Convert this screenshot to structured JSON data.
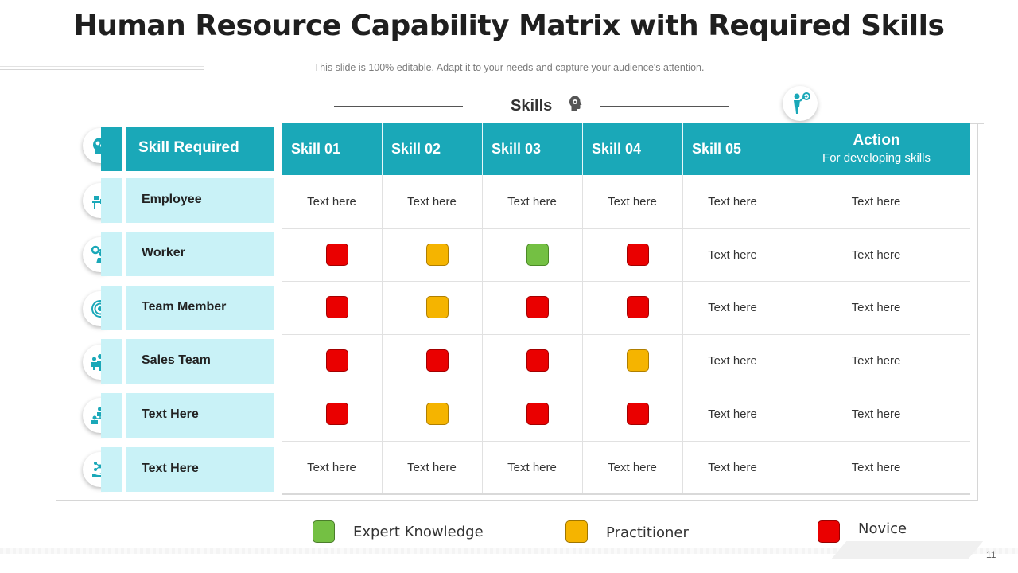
{
  "slide": {
    "title": "Human Resource Capability Matrix with Required Skills",
    "subtitle": "This slide is 100% editable. Adapt it to your needs and capture your audience's attention.",
    "page_number": "11"
  },
  "skills_header": {
    "label": "Skills"
  },
  "table": {
    "row_header_label": "Skill Required",
    "columns": [
      "Skill 01",
      "Skill 02",
      "Skill 03",
      "Skill 04",
      "Skill 05"
    ],
    "action_title": "Action",
    "action_subtitle": "For developing skills",
    "rows": [
      {
        "label": "Employee",
        "icon": "desk-worker-icon",
        "cells": [
          "Text here",
          "Text here",
          "Text here",
          "Text here",
          "Text here"
        ],
        "action": "Text here"
      },
      {
        "label": "Worker",
        "icon": "worker-gear-icon",
        "cells": [
          "red",
          "yellow",
          "green",
          "red",
          "Text here"
        ],
        "action": "Text here"
      },
      {
        "label": "Team Member",
        "icon": "target-icon",
        "cells": [
          "red",
          "yellow",
          "red",
          "red",
          "Text here"
        ],
        "action": "Text here"
      },
      {
        "label": "Sales Team",
        "icon": "group-icon",
        "cells": [
          "red",
          "red",
          "red",
          "yellow",
          "Text here"
        ],
        "action": "Text here"
      },
      {
        "label": "Text Here",
        "icon": "hierarchy-icon",
        "cells": [
          "red",
          "yellow",
          "red",
          "red",
          "Text here"
        ],
        "action": "Text here"
      },
      {
        "label": "Text Here",
        "icon": "hand-network-icon",
        "cells": [
          "Text here",
          "Text here",
          "Text here",
          "Text here",
          "Text here"
        ],
        "action": "Text here"
      }
    ]
  },
  "legend": [
    {
      "label": "Expert Knowledge",
      "color": "#74c043"
    },
    {
      "label": "Practitioner",
      "color": "#f5b400"
    },
    {
      "label": "Novice",
      "color": "#ea0000"
    }
  ],
  "colors": {
    "accent": "#1aa8b8",
    "light_accent": "#c9f2f7",
    "icon": "#1aa8b8"
  }
}
